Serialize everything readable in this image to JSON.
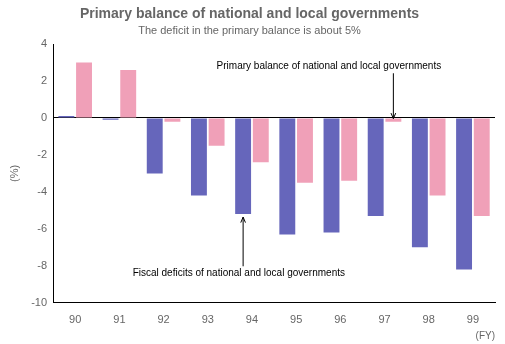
{
  "chart_data": {
    "type": "bar",
    "title": "Primary balance of national and local governments",
    "subtitle": "The deficit in the primary balance is about 5%",
    "ylabel": "(%)",
    "xlabel": "(FY)",
    "categories": [
      "90",
      "91",
      "92",
      "93",
      "94",
      "95",
      "96",
      "97",
      "98",
      "99"
    ],
    "series": [
      {
        "color": "#6666bb",
        "values": [
          0.1,
          -0.1,
          -3.0,
          -4.2,
          -5.2,
          -6.3,
          -6.2,
          -5.3,
          -7.0,
          -8.2
        ]
      },
      {
        "color": "#f0a0b8",
        "values": [
          3.0,
          2.6,
          -0.2,
          -1.5,
          -2.4,
          -3.5,
          -3.4,
          -0.2,
          -4.2,
          -5.3
        ]
      }
    ],
    "ylim": [
      -10,
      4
    ],
    "yticks": [
      -10,
      -8,
      -6,
      -4,
      -2,
      0,
      2,
      4
    ],
    "grid": false,
    "annotations": [
      {
        "text": "Fiscal deficits of national and local governments"
      },
      {
        "text": "Primary balance of national and local governments"
      }
    ]
  }
}
